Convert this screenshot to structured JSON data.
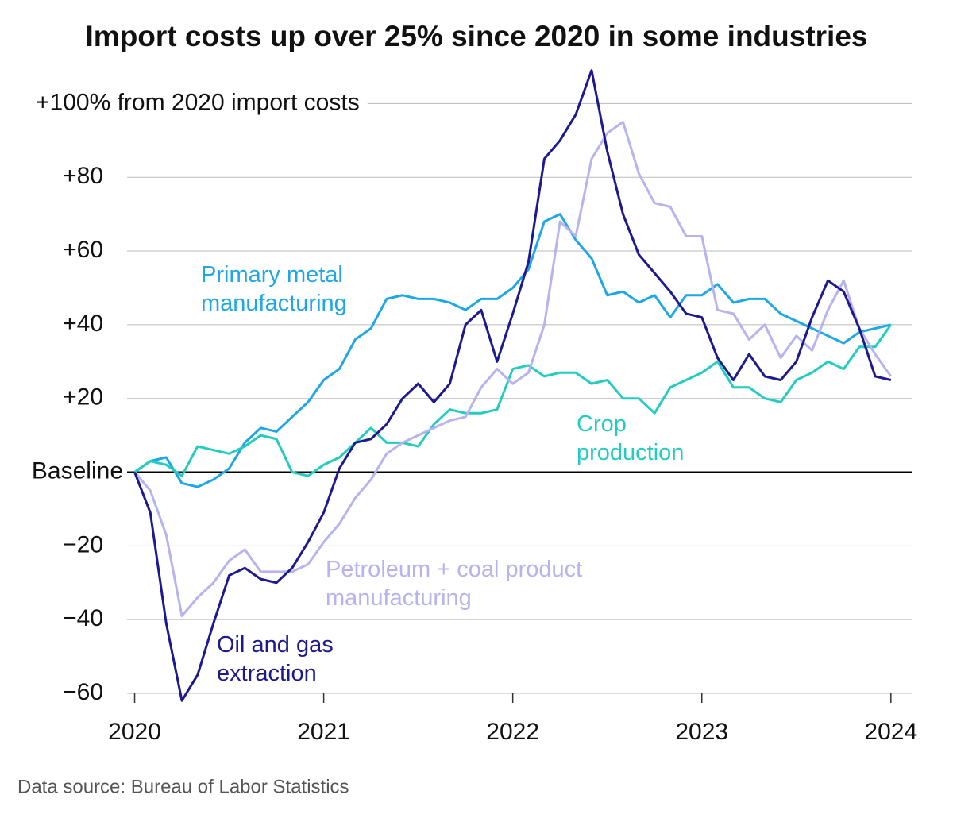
{
  "chart_data": {
    "type": "line",
    "title": "Import costs up over 25% since 2020 in some industries",
    "source": "Data source: Bureau of Labor Statistics",
    "x": [
      2020,
      2020.083,
      2020.167,
      2020.25,
      2020.333,
      2020.417,
      2020.5,
      2020.583,
      2020.667,
      2020.75,
      2020.833,
      2020.917,
      2021,
      2021.083,
      2021.167,
      2021.25,
      2021.333,
      2021.417,
      2021.5,
      2021.583,
      2021.667,
      2021.75,
      2021.833,
      2021.917,
      2022,
      2022.083,
      2022.167,
      2022.25,
      2022.333,
      2022.417,
      2022.5,
      2022.583,
      2022.667,
      2022.75,
      2022.833,
      2022.917,
      2023,
      2023.083,
      2023.167,
      2023.25,
      2023.333,
      2023.417,
      2023.5,
      2023.583,
      2023.667,
      2023.75,
      2023.833,
      2023.917,
      2024
    ],
    "xlim": [
      2019.96,
      2024.11
    ],
    "xticks": [
      2020,
      2021,
      2022,
      2023,
      2024
    ],
    "ylim": [
      -60,
      110
    ],
    "yticks": [
      {
        "value": 100,
        "label": "+100% from 2020 import costs"
      },
      {
        "value": 80,
        "label": "+80"
      },
      {
        "value": 60,
        "label": "+60"
      },
      {
        "value": 40,
        "label": "+40"
      },
      {
        "value": 20,
        "label": "+20"
      },
      {
        "value": 0,
        "label": "Baseline"
      },
      {
        "value": -20,
        "label": "−20"
      },
      {
        "value": -40,
        "label": "−40"
      },
      {
        "value": -60,
        "label": "−60"
      }
    ],
    "grid": true,
    "series": [
      {
        "name": "Primary metal manufacturing",
        "color": "#1ea7e8",
        "values": [
          0,
          3,
          4,
          -3,
          -4,
          -2,
          1,
          8,
          12,
          11,
          15,
          19,
          25,
          28,
          36,
          39,
          47,
          48,
          47,
          47,
          46,
          44,
          47,
          47,
          50,
          55,
          68,
          70,
          63,
          58,
          48,
          49,
          46,
          48,
          42,
          48,
          48,
          51,
          46,
          47,
          47,
          43,
          41,
          39,
          37,
          35,
          38,
          39,
          40
        ]
      },
      {
        "name": "Crop production",
        "color": "#22cdc0",
        "values": [
          0,
          3,
          2,
          -1,
          7,
          6,
          5,
          7,
          10,
          9,
          0,
          -1,
          2,
          4,
          8,
          12,
          8,
          8,
          7,
          13,
          17,
          16,
          16,
          17,
          28,
          29,
          26,
          27,
          27,
          24,
          25,
          20,
          20,
          16,
          23,
          25,
          27,
          30,
          23,
          23,
          20,
          19,
          25,
          27,
          30,
          28,
          34,
          34,
          40
        ]
      },
      {
        "name": "Petroleum + coal product manufacturing",
        "color": "#b6b3f0",
        "values": [
          0,
          -5,
          -17,
          -39,
          -34,
          -30,
          -24,
          -21,
          -27,
          -27,
          -27,
          -25,
          -19,
          -14,
          -7,
          -2,
          5,
          8,
          10,
          12,
          14,
          15,
          23,
          28,
          24,
          27,
          40,
          68,
          64,
          85,
          92,
          95,
          81,
          73,
          72,
          64,
          64,
          44,
          43,
          36,
          40,
          31,
          37,
          33,
          44,
          52,
          39,
          32,
          26
        ]
      },
      {
        "name": "Oil and gas extraction",
        "color": "#1c1a8e",
        "values": [
          0,
          -11,
          -41,
          -62,
          -55,
          -41,
          -28,
          -26,
          -29,
          -30,
          -26,
          -19,
          -11,
          1,
          8,
          9,
          13,
          20,
          24,
          19,
          24,
          40,
          44,
          30,
          43,
          57,
          85,
          90,
          97,
          109,
          87,
          70,
          59,
          54,
          49,
          43,
          42,
          31,
          25,
          32,
          26,
          25,
          30,
          42,
          52,
          49,
          39,
          26,
          25
        ]
      }
    ]
  }
}
